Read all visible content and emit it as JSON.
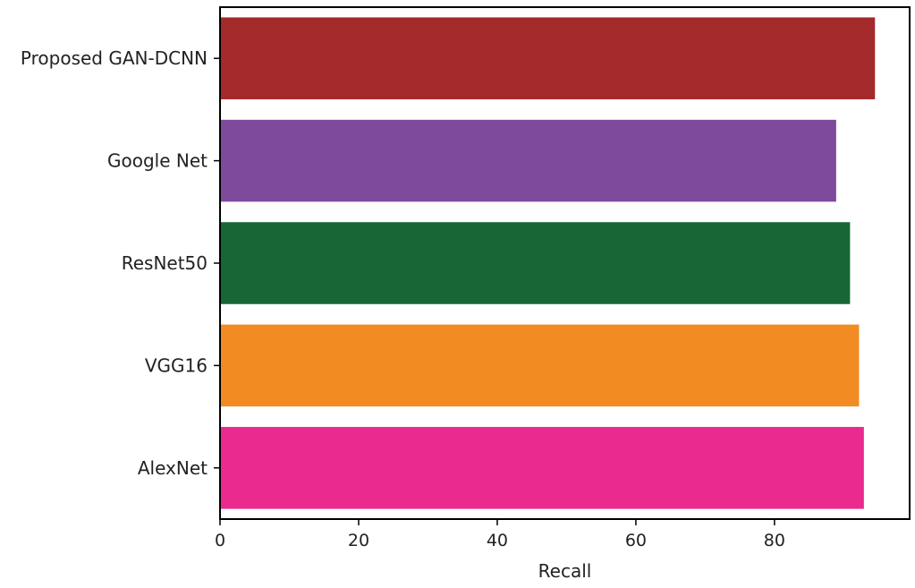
{
  "chart_data": {
    "type": "bar",
    "orientation": "horizontal",
    "categories": [
      "AlexNet",
      "VGG16",
      "ResNet50",
      "Google Net",
      "Proposed GAN-DCNN"
    ],
    "values": [
      92.9,
      92.2,
      90.9,
      88.9,
      94.5
    ],
    "colors": [
      "#ea2a8e",
      "#f28b22",
      "#186535",
      "#7e4a9c",
      "#a3292a"
    ],
    "xlabel": "Recall",
    "ylabel": "",
    "title": "",
    "xlim": [
      0,
      99.5
    ],
    "xticks": [
      0,
      20,
      40,
      60,
      80
    ],
    "grid": false,
    "legend": "none"
  }
}
